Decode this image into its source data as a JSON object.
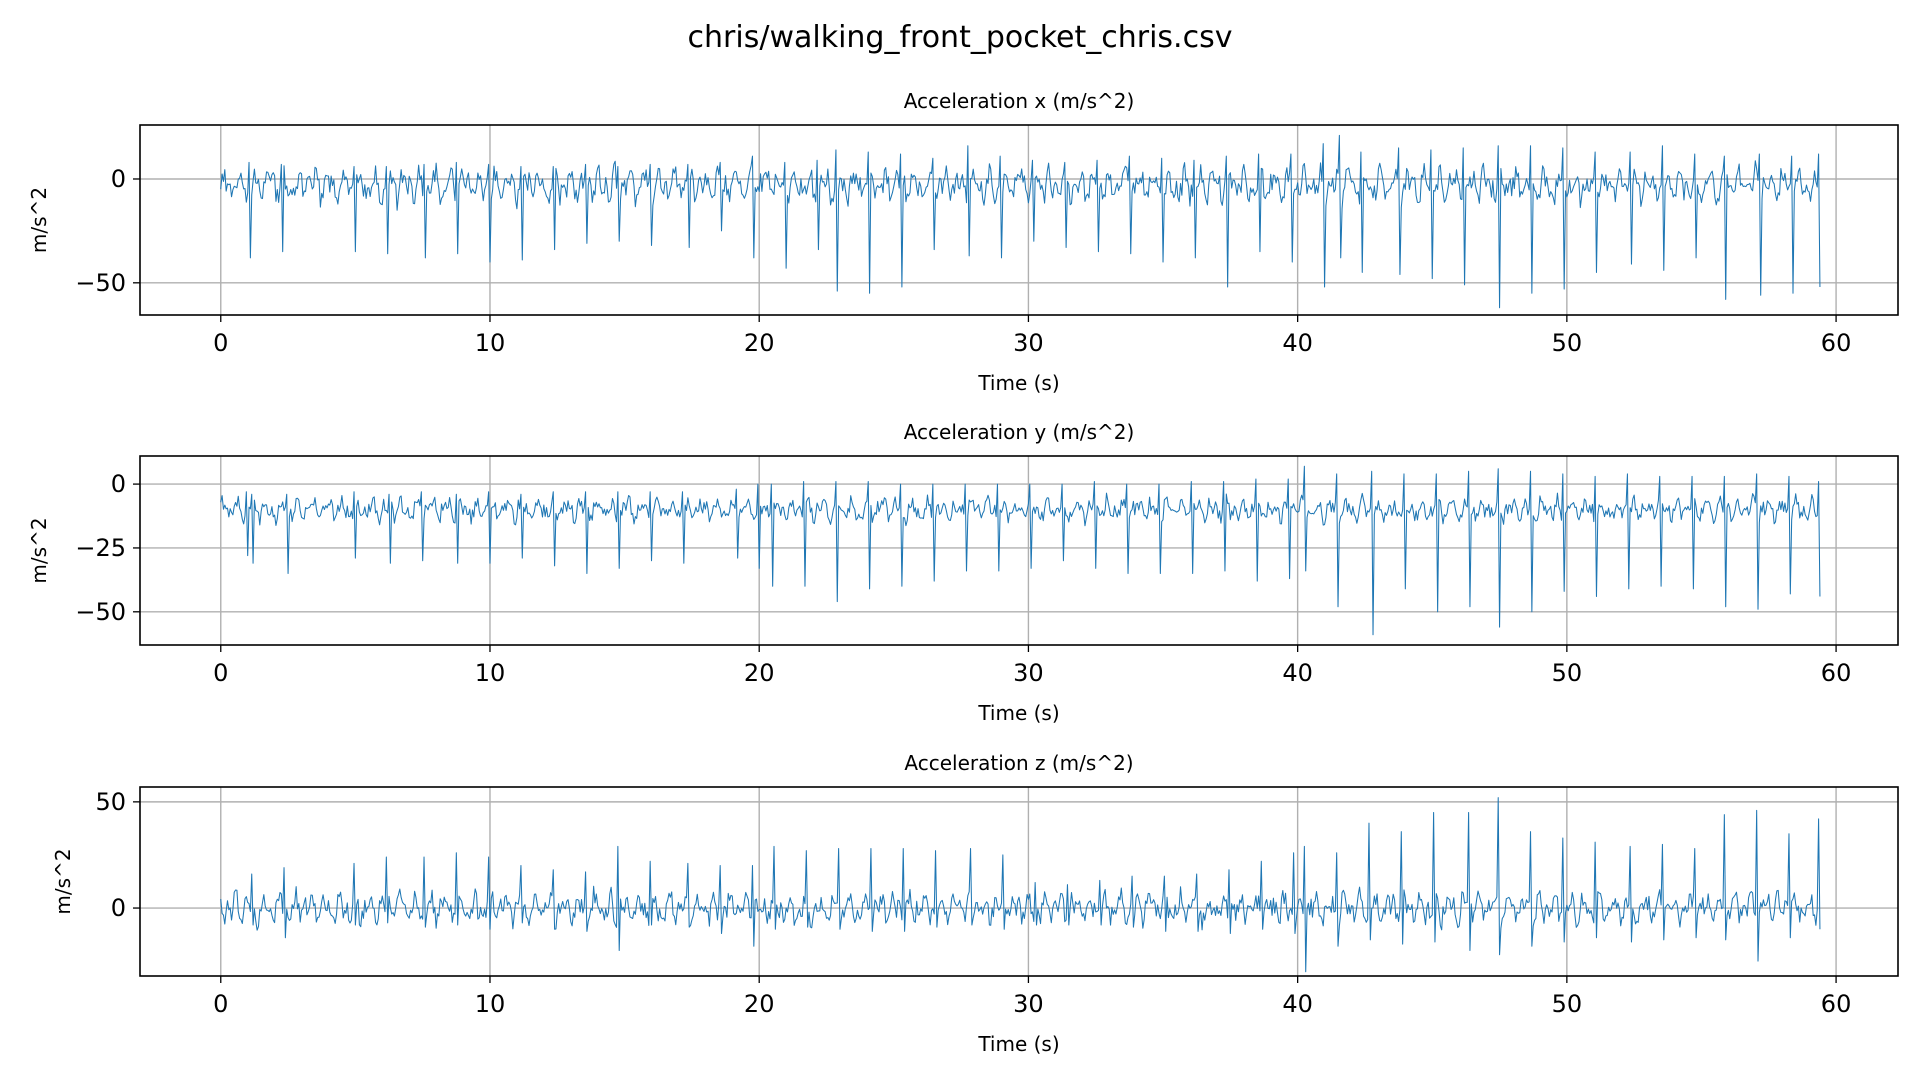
{
  "figure": {
    "title": "chris/walking_front_pocket_chris.csv"
  },
  "colors": {
    "series": "#1f77b4",
    "grid": "#b0b0b0",
    "axes": "#000000"
  },
  "chart_data": [
    {
      "type": "line",
      "title": "Acceleration x (m/s^2)",
      "xlabel": "Time (s)",
      "ylabel": "m/s^2",
      "xlim": [
        -3,
        62.3
      ],
      "ylim": [
        -65.5,
        26
      ],
      "xticks": [
        0,
        10,
        20,
        30,
        40,
        50,
        60
      ],
      "yticks": [
        0,
        -50
      ],
      "grid": true,
      "series": [
        {
          "duration_s": 59.4,
          "sample_step_s": 0.05,
          "baseline": -3,
          "noise_amp": 9,
          "beat_period_s": 1.17,
          "beats": [
            [
              1.1,
              8,
              -38
            ],
            [
              2.3,
              7,
              -35
            ],
            [
              5.0,
              6,
              -35
            ],
            [
              6.2,
              6,
              -36
            ],
            [
              7.6,
              7,
              -38
            ],
            [
              8.8,
              8,
              -36
            ],
            [
              10.0,
              7,
              -40
            ],
            [
              11.2,
              6,
              -39
            ],
            [
              12.4,
              6,
              -34
            ],
            [
              13.6,
              7,
              -31
            ],
            [
              14.8,
              6,
              -30
            ],
            [
              16.0,
              7,
              -32
            ],
            [
              17.4,
              7,
              -33
            ],
            [
              18.6,
              8,
              -25
            ],
            [
              19.8,
              11,
              -38
            ],
            [
              21.0,
              8,
              -43
            ],
            [
              22.2,
              9,
              -34
            ],
            [
              22.9,
              14,
              -54
            ],
            [
              24.1,
              13,
              -55
            ],
            [
              25.3,
              12,
              -52
            ],
            [
              26.5,
              10,
              -34
            ],
            [
              27.8,
              16,
              -37
            ],
            [
              29.0,
              11,
              -38
            ],
            [
              30.2,
              9,
              -30
            ],
            [
              31.4,
              8,
              -33
            ],
            [
              32.6,
              9,
              -35
            ],
            [
              33.8,
              11,
              -36
            ],
            [
              35.0,
              10,
              -40
            ],
            [
              36.2,
              9,
              -38
            ],
            [
              37.4,
              11,
              -52
            ],
            [
              38.6,
              12,
              -35
            ],
            [
              39.8,
              12,
              -40
            ],
            [
              41.0,
              17,
              -52
            ],
            [
              41.6,
              21,
              -38
            ],
            [
              42.4,
              13,
              -45
            ],
            [
              43.8,
              15,
              -46
            ],
            [
              45.0,
              14,
              -48
            ],
            [
              46.2,
              15,
              -51
            ],
            [
              47.5,
              16,
              -62
            ],
            [
              48.7,
              16,
              -55
            ],
            [
              49.9,
              15,
              -53
            ],
            [
              51.1,
              13,
              -45
            ],
            [
              52.4,
              13,
              -41
            ],
            [
              53.6,
              16,
              -44
            ],
            [
              54.8,
              12,
              -38
            ],
            [
              55.9,
              11,
              -58
            ],
            [
              57.2,
              12,
              -56
            ],
            [
              58.4,
              11,
              -55
            ],
            [
              59.4,
              12,
              -52
            ]
          ]
        }
      ]
    },
    {
      "type": "line",
      "title": "Acceleration y (m/s^2)",
      "xlabel": "Time (s)",
      "ylabel": "m/s^2",
      "xlim": [
        -3,
        62.3
      ],
      "ylim": [
        -63,
        11
      ],
      "xticks": [
        0,
        10,
        20,
        30,
        40,
        50,
        60
      ],
      "yticks": [
        0,
        -25,
        -50
      ],
      "grid": true,
      "series": [
        {
          "duration_s": 59.4,
          "sample_step_s": 0.05,
          "baseline": -10,
          "noise_amp": 5,
          "beat_period_s": 1.17,
          "beats": [
            [
              1.0,
              -3,
              -28
            ],
            [
              1.2,
              -4,
              -31
            ],
            [
              2.5,
              -4,
              -35
            ],
            [
              5.0,
              -3,
              -29
            ],
            [
              6.3,
              -4,
              -31
            ],
            [
              7.5,
              -3,
              -30
            ],
            [
              8.8,
              -4,
              -31
            ],
            [
              10.0,
              -3,
              -31
            ],
            [
              11.2,
              -4,
              -29
            ],
            [
              12.4,
              -3,
              -32
            ],
            [
              13.6,
              -3,
              -35
            ],
            [
              14.8,
              -3,
              -33
            ],
            [
              16.0,
              -3,
              -30
            ],
            [
              17.2,
              -3,
              -31
            ],
            [
              19.2,
              -2,
              -29
            ],
            [
              20.0,
              0,
              -33
            ],
            [
              20.5,
              0,
              -40
            ],
            [
              21.7,
              1,
              -40
            ],
            [
              22.9,
              1,
              -46
            ],
            [
              24.1,
              1,
              -41
            ],
            [
              25.3,
              0,
              -40
            ],
            [
              26.5,
              0,
              -38
            ],
            [
              27.7,
              0,
              -34
            ],
            [
              28.9,
              0,
              -34
            ],
            [
              30.1,
              0,
              -33
            ],
            [
              31.3,
              0,
              -30
            ],
            [
              32.5,
              1,
              -33
            ],
            [
              33.7,
              0,
              -35
            ],
            [
              34.9,
              0,
              -35
            ],
            [
              36.1,
              1,
              -35
            ],
            [
              37.3,
              1,
              -34
            ],
            [
              38.5,
              2,
              -38
            ],
            [
              39.7,
              2,
              -37
            ],
            [
              40.3,
              7,
              -34
            ],
            [
              41.5,
              4,
              -48
            ],
            [
              42.8,
              5,
              -59
            ],
            [
              44.0,
              4,
              -41
            ],
            [
              45.2,
              4,
              -50
            ],
            [
              46.4,
              5,
              -48
            ],
            [
              47.5,
              6,
              -56
            ],
            [
              48.7,
              5,
              -50
            ],
            [
              49.9,
              4,
              -42
            ],
            [
              51.1,
              3,
              -44
            ],
            [
              52.3,
              4,
              -41
            ],
            [
              53.5,
              3,
              -40
            ],
            [
              54.7,
              3,
              -41
            ],
            [
              55.9,
              3,
              -48
            ],
            [
              57.1,
              4,
              -49
            ],
            [
              58.3,
              3,
              -43
            ],
            [
              59.4,
              1,
              -44
            ]
          ]
        }
      ]
    },
    {
      "type": "line",
      "title": "Acceleration z (m/s^2)",
      "xlabel": "Time (s)",
      "ylabel": "m/s^2",
      "xlim": [
        -3,
        62.3
      ],
      "ylim": [
        -32,
        57
      ],
      "xticks": [
        0,
        10,
        20,
        30,
        40,
        50,
        60
      ],
      "yticks": [
        50,
        0
      ],
      "grid": true,
      "series": [
        {
          "duration_s": 59.4,
          "sample_step_s": 0.05,
          "baseline": 0,
          "noise_amp": 8,
          "beat_period_s": 1.17,
          "beats": [
            [
              1.2,
              16,
              -8
            ],
            [
              2.4,
              19,
              -14
            ],
            [
              5.0,
              21,
              -8
            ],
            [
              6.2,
              24,
              -7
            ],
            [
              7.6,
              24,
              -9
            ],
            [
              8.8,
              26,
              -8
            ],
            [
              10.0,
              24,
              -10
            ],
            [
              11.2,
              20,
              -7
            ],
            [
              12.4,
              18,
              -10
            ],
            [
              13.6,
              17,
              -11
            ],
            [
              14.8,
              29,
              -20
            ],
            [
              16.0,
              22,
              -8
            ],
            [
              17.4,
              21,
              -9
            ],
            [
              18.6,
              20,
              -12
            ],
            [
              19.8,
              20,
              -18
            ],
            [
              20.6,
              29,
              -10
            ],
            [
              21.8,
              27,
              -9
            ],
            [
              23.0,
              28,
              -10
            ],
            [
              24.2,
              28,
              -11
            ],
            [
              25.4,
              28,
              -11
            ],
            [
              26.6,
              27,
              -9
            ],
            [
              27.9,
              28,
              -8
            ],
            [
              29.1,
              25,
              -10
            ],
            [
              30.3,
              12,
              -8
            ],
            [
              31.5,
              11,
              -8
            ],
            [
              32.7,
              13,
              -8
            ],
            [
              33.9,
              15,
              -9
            ],
            [
              35.1,
              15,
              -11
            ],
            [
              36.3,
              16,
              -11
            ],
            [
              37.5,
              18,
              -12
            ],
            [
              38.7,
              22,
              -10
            ],
            [
              39.9,
              26,
              -12
            ],
            [
              40.3,
              29,
              -30
            ],
            [
              41.5,
              26,
              -18
            ],
            [
              42.7,
              40,
              -15
            ],
            [
              43.9,
              36,
              -17
            ],
            [
              45.1,
              45,
              -16
            ],
            [
              46.4,
              45,
              -20
            ],
            [
              47.5,
              52,
              -22
            ],
            [
              48.7,
              36,
              -18
            ],
            [
              49.9,
              33,
              -16
            ],
            [
              51.1,
              31,
              -14
            ],
            [
              52.4,
              29,
              -16
            ],
            [
              53.6,
              30,
              -15
            ],
            [
              54.8,
              28,
              -14
            ],
            [
              55.9,
              44,
              -15
            ],
            [
              57.1,
              46,
              -25
            ],
            [
              58.3,
              35,
              -14
            ],
            [
              59.4,
              42,
              -10
            ]
          ]
        }
      ]
    }
  ]
}
